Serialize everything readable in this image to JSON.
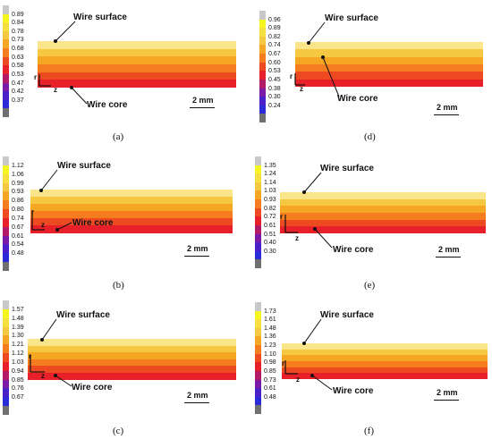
{
  "labels": {
    "surface": "Wire surface",
    "core": "Wire core",
    "scale": "2 mm",
    "axis_r": "r",
    "axis_z": "z"
  },
  "panels": [
    {
      "id": "a",
      "caption": "(a)",
      "ticks": [
        "0.89",
        "0.84",
        "0.78",
        "0.73",
        "0.68",
        "0.63",
        "0.58",
        "0.53",
        "0.47",
        "0.42",
        "0.37"
      ]
    },
    {
      "id": "b",
      "caption": "(b)",
      "ticks": [
        "1.12",
        "1.06",
        "0.99",
        "0.93",
        "0.86",
        "0.80",
        "0.74",
        "0.67",
        "0.61",
        "0.54",
        "0.48"
      ]
    },
    {
      "id": "c",
      "caption": "(c)",
      "ticks": [
        "1.57",
        "1.48",
        "1.39",
        "1.30",
        "1.21",
        "1.12",
        "1.03",
        "0.94",
        "0.85",
        "0.76",
        "0.67"
      ]
    },
    {
      "id": "d",
      "caption": "(d)",
      "ticks": [
        "0.96",
        "0.89",
        "0.82",
        "0.74",
        "0.67",
        "0.60",
        "0.53",
        "0.45",
        "0.38",
        "0.30",
        "0.24"
      ]
    },
    {
      "id": "e",
      "caption": "(e)",
      "ticks": [
        "1.35",
        "1.24",
        "1.14",
        "1.03",
        "0.93",
        "0.82",
        "0.72",
        "0.61",
        "0.51",
        "0.40",
        "0.30"
      ]
    },
    {
      "id": "f",
      "caption": "(f)",
      "ticks": [
        "1.73",
        "1.61",
        "1.48",
        "1.36",
        "1.23",
        "1.10",
        "0.98",
        "0.85",
        "0.73",
        "0.61",
        "0.48"
      ]
    }
  ],
  "colors": {
    "scale_stops": [
      "#c8c8c8",
      "#f5f520",
      "#f5e040",
      "#f5c842",
      "#f5a623",
      "#f57d1f",
      "#ee4a22",
      "#e8202a",
      "#b01a66",
      "#7a1aa6",
      "#4a20c8",
      "#2a2ad8",
      "#707070"
    ],
    "layers": [
      "#fbe58a",
      "#f6c842",
      "#f5a623",
      "#f57d1f",
      "#ee4a22",
      "#e8202a"
    ]
  }
}
